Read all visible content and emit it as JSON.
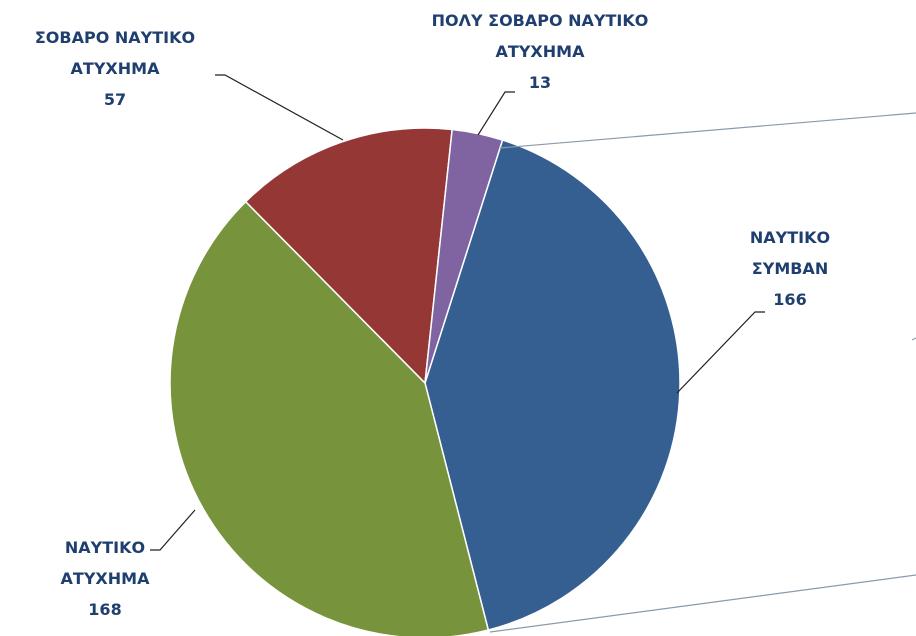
{
  "chart_data": {
    "type": "pie",
    "categories": [
      "ΝΑΥΤΙΚΟ ΣΥΜΒΑΝ",
      "ΝΑΥΤΙΚΟ ΑΤΥΧΗΜΑ",
      "ΣΟΒΑΡΟ ΝΑΥΤΙΚΟ ΑΤΥΧΗΜΑ",
      "ΠΟΛΥ ΣΟΒΑΡΟ ΝΑΥΤΙΚΟ ΑΤΥΧΗΜΑ"
    ],
    "values": [
      166,
      168,
      57,
      13
    ],
    "colors": [
      "#365f91",
      "#77933c",
      "#953735",
      "#8064a2"
    ]
  }
}
